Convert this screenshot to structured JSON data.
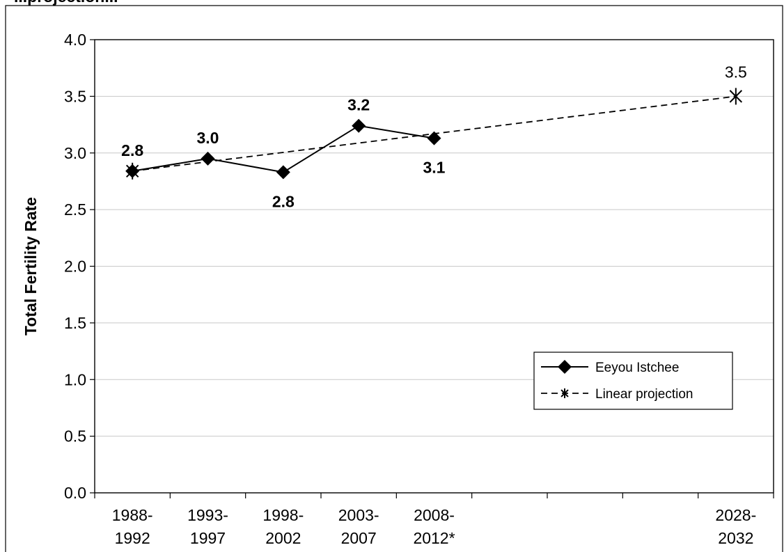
{
  "chart_data": {
    "type": "line",
    "title": "...projection...",
    "ylabel": "Total Fertility Rate",
    "xlabel": "",
    "ylim": [
      0,
      4
    ],
    "yticks": [
      "0.0",
      "0.5",
      "1.0",
      "1.5",
      "2.0",
      "2.5",
      "3.0",
      "3.5",
      "4.0"
    ],
    "grid": true,
    "legend_position": "right",
    "categories": [
      [
        "1988-",
        "1992"
      ],
      [
        "1993-",
        "1997"
      ],
      [
        "1998-",
        "2002"
      ],
      [
        "2003-",
        "2007"
      ],
      [
        "2008-",
        "2012*"
      ],
      [
        "",
        ""
      ],
      [
        "",
        ""
      ],
      [
        "",
        ""
      ],
      [
        "2028-",
        "2032"
      ]
    ],
    "series": [
      {
        "name": "Eeyou Istchee",
        "style": "solid",
        "marker": "diamond",
        "color": "#000000",
        "values": [
          2.84,
          2.95,
          2.83,
          3.24,
          3.13,
          null,
          null,
          null,
          null
        ],
        "labels": [
          "2.8",
          "3.0",
          "2.8",
          "3.2",
          "3.1",
          null,
          null,
          null,
          null
        ],
        "label_pos": [
          "above",
          "above",
          "below",
          "above",
          "below",
          null,
          null,
          null,
          null
        ]
      },
      {
        "name": "Linear projection",
        "style": "dashed",
        "marker": "asterisk",
        "color": "#000000",
        "values": [
          2.84,
          null,
          null,
          null,
          null,
          null,
          null,
          null,
          3.5
        ],
        "labels": [
          null,
          null,
          null,
          null,
          null,
          null,
          null,
          null,
          "3.5"
        ],
        "label_pos": [
          null,
          null,
          null,
          null,
          null,
          null,
          null,
          null,
          "above"
        ]
      }
    ]
  }
}
